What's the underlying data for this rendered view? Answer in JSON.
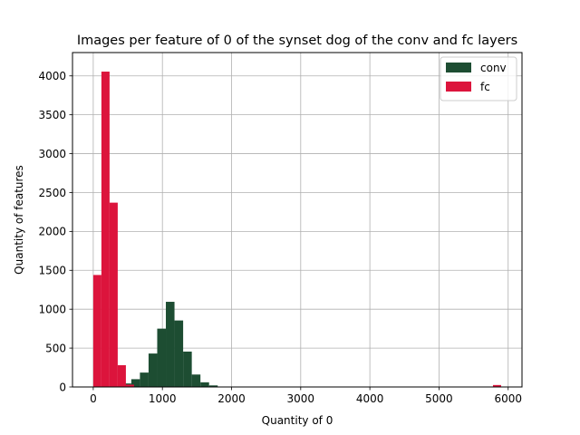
{
  "chart_data": {
    "type": "bar",
    "subtype": "histogram",
    "title": "Images per feature of 0 of the synset dog of the conv and fc layers",
    "xlabel": "Quantity of 0",
    "ylabel": "Quantity of features",
    "xlim": [
      -300,
      6200
    ],
    "ylim": [
      0,
      4300
    ],
    "xticks": [
      0,
      1000,
      2000,
      3000,
      4000,
      5000,
      6000
    ],
    "yticks": [
      0,
      500,
      1000,
      1500,
      2000,
      2500,
      3000,
      3500,
      4000
    ],
    "grid": true,
    "legend": "top-right",
    "series": [
      {
        "name": "conv",
        "color": "#1d4d32",
        "bins": [
          {
            "x0": 300,
            "x1": 425,
            "value": 10
          },
          {
            "x0": 425,
            "x1": 550,
            "value": 45
          },
          {
            "x0": 550,
            "x1": 675,
            "value": 100
          },
          {
            "x0": 675,
            "x1": 800,
            "value": 185
          },
          {
            "x0": 800,
            "x1": 925,
            "value": 430
          },
          {
            "x0": 925,
            "x1": 1050,
            "value": 750
          },
          {
            "x0": 1050,
            "x1": 1175,
            "value": 1095
          },
          {
            "x0": 1175,
            "x1": 1300,
            "value": 855
          },
          {
            "x0": 1300,
            "x1": 1425,
            "value": 455
          },
          {
            "x0": 1425,
            "x1": 1550,
            "value": 160
          },
          {
            "x0": 1550,
            "x1": 1675,
            "value": 60
          },
          {
            "x0": 1675,
            "x1": 1800,
            "value": 20
          },
          {
            "x0": 1800,
            "x1": 1925,
            "value": 5
          }
        ]
      },
      {
        "name": "fc",
        "color": "#dc143c",
        "bins": [
          {
            "x0": 0,
            "x1": 118,
            "value": 1440
          },
          {
            "x0": 118,
            "x1": 236,
            "value": 4055
          },
          {
            "x0": 236,
            "x1": 354,
            "value": 2370
          },
          {
            "x0": 354,
            "x1": 472,
            "value": 280
          },
          {
            "x0": 472,
            "x1": 590,
            "value": 30
          },
          {
            "x0": 5780,
            "x1": 5898,
            "value": 25
          }
        ]
      }
    ]
  }
}
